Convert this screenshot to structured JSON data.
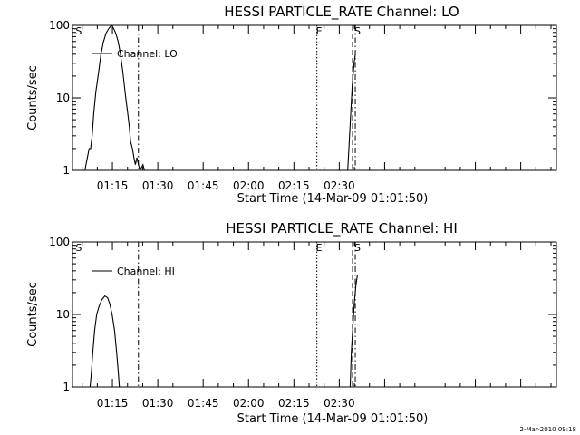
{
  "footer": {
    "timestamp": "2-Mar-2010 09:18"
  },
  "chart_data": [
    {
      "type": "line",
      "title": "HESSI PARTICLE_RATE Channel: LO",
      "xlabel": "Start Time (14-Mar-09 01:01:50)",
      "ylabel": "Counts/sec",
      "yscale": "log",
      "ylim": [
        1,
        100
      ],
      "yticks": [
        1,
        10,
        100
      ],
      "ytick_labels": [
        "1",
        "10",
        "100"
      ],
      "xlim_minutes_after_01_00": [
        1.8,
        161.8
      ],
      "xtick_labels": [
        "01:15",
        "01:30",
        "01:45",
        "02:00",
        "02:15",
        "02:30"
      ],
      "xtick_minutes_after_01_00": [
        15,
        30,
        45,
        60,
        75,
        90
      ],
      "legend": {
        "entries": [
          "Channel: LO"
        ],
        "placement": "top-left"
      },
      "series": [
        {
          "name": "Channel: LO",
          "color": "#000000",
          "segments": [
            [
              [
                5.9,
                1
              ],
              [
                6.7,
                1.5
              ],
              [
                7.3,
                2
              ],
              [
                7.8,
                2
              ],
              [
                8.3,
                3
              ],
              [
                8.8,
                6
              ],
              [
                9.5,
                12
              ],
              [
                10.4,
                22
              ],
              [
                11.2,
                40
              ],
              [
                12,
                58
              ],
              [
                12.9,
                78
              ],
              [
                13.9,
                92
              ],
              [
                14.7,
                100
              ],
              [
                15.3,
                92
              ],
              [
                16,
                80
              ],
              [
                16.8,
                62
              ],
              [
                17.6,
                42
              ],
              [
                18.5,
                22
              ],
              [
                19.3,
                11
              ],
              [
                20,
                6.5
              ],
              [
                20.6,
                4
              ],
              [
                21,
                2.5
              ],
              [
                21.6,
                2
              ],
              [
                22.1,
                1.5
              ],
              [
                22.6,
                1.2
              ],
              [
                23.1,
                1.5
              ],
              [
                23.6,
                1.2
              ],
              [
                24.1,
                1
              ],
              [
                25.1,
                1.2
              ],
              [
                25.6,
                1
              ]
            ],
            [
              [
                92.8,
                1
              ],
              [
                93.3,
                2.5
              ],
              [
                93.8,
                6
              ],
              [
                94.3,
                15
              ],
              [
                94.9,
                30
              ],
              [
                95.3,
                40
              ]
            ]
          ]
        }
      ],
      "annotations": [
        {
          "label": "S",
          "x": 1.9,
          "line": "none"
        },
        {
          "label": "",
          "x": 23.6,
          "line": "dashdot"
        },
        {
          "label": "E",
          "x": 82.6,
          "line": "dotted"
        },
        {
          "label": "",
          "x": 94.4,
          "line": "dashed"
        },
        {
          "label": "S",
          "x": 95.3,
          "line": "dashdot"
        }
      ]
    },
    {
      "type": "line",
      "title": "HESSI PARTICLE_RATE Channel: HI",
      "xlabel": "Start Time (14-Mar-09 01:01:50)",
      "ylabel": "Counts/sec",
      "yscale": "log",
      "ylim": [
        1,
        100
      ],
      "yticks": [
        1,
        10,
        100
      ],
      "ytick_labels": [
        "1",
        "10",
        "100"
      ],
      "xlim_minutes_after_01_00": [
        1.8,
        161.8
      ],
      "xtick_labels": [
        "01:15",
        "01:30",
        "01:45",
        "02:00",
        "02:15",
        "02:30"
      ],
      "xtick_minutes_after_01_00": [
        15,
        30,
        45,
        60,
        75,
        90
      ],
      "legend": {
        "entries": [
          "Channel: HI"
        ],
        "placement": "top-left"
      },
      "series": [
        {
          "name": "Channel: HI",
          "color": "#000000",
          "segments": [
            [
              [
                7.6,
                1
              ],
              [
                8,
                1.5
              ],
              [
                8.5,
                3
              ],
              [
                9.1,
                6
              ],
              [
                9.8,
                10
              ],
              [
                10.6,
                13
              ],
              [
                11.5,
                16
              ],
              [
                12.5,
                18
              ],
              [
                13.4,
                17
              ],
              [
                14.1,
                14
              ],
              [
                14.9,
                10
              ],
              [
                15.7,
                6
              ],
              [
                16.4,
                3
              ],
              [
                17,
                1.5
              ],
              [
                17.3,
                1
              ]
            ],
            [
              [
                93.6,
                1
              ],
              [
                94,
                3
              ],
              [
                94.6,
                8
              ],
              [
                95,
                15
              ],
              [
                95.5,
                25
              ],
              [
                96,
                35
              ]
            ]
          ]
        }
      ],
      "annotations": [
        {
          "label": "S",
          "x": 1.9,
          "line": "none"
        },
        {
          "label": "",
          "x": 23.6,
          "line": "dashdot"
        },
        {
          "label": "E",
          "x": 82.6,
          "line": "dotted"
        },
        {
          "label": "",
          "x": 94.4,
          "line": "dashed"
        },
        {
          "label": "S",
          "x": 95.3,
          "line": "dashdot"
        }
      ]
    }
  ]
}
